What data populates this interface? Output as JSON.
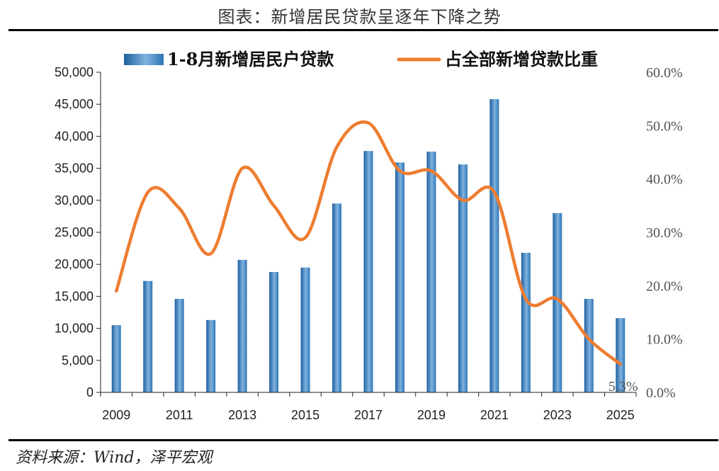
{
  "header": {
    "title": "图表：新增居民贷款呈逐年下降之势"
  },
  "footer": {
    "source": "资料来源：Wind，泽平宏观"
  },
  "chart_data": {
    "type": "bar",
    "categories": [
      "2009",
      "2010",
      "2011",
      "2012",
      "2013",
      "2014",
      "2015",
      "2016",
      "2017",
      "2018",
      "2019",
      "2020",
      "2021",
      "2022",
      "2023",
      "2024",
      "2025"
    ],
    "x_tick_labels": [
      "2009",
      "2011",
      "2013",
      "2015",
      "2017",
      "2019",
      "2021",
      "2023",
      "2025"
    ],
    "series": [
      {
        "name": "1-8月新增居民户贷款",
        "type": "bar",
        "axis": "left",
        "values": [
          10500,
          17400,
          14600,
          11300,
          20700,
          18800,
          19500,
          29500,
          37700,
          35900,
          37600,
          35600,
          45800,
          21800,
          28000,
          14600,
          11600
        ],
        "color": "#2E75B6"
      },
      {
        "name": "占全部新增贷款比重",
        "type": "line",
        "axis": "right",
        "values": [
          19.0,
          37.5,
          34.5,
          26.0,
          42.0,
          35.0,
          29.0,
          46.0,
          50.5,
          41.5,
          41.5,
          36.0,
          37.5,
          17.5,
          17.5,
          10.0,
          5.3
        ],
        "color": "#ED7D31"
      }
    ],
    "y_left": {
      "min": 0,
      "max": 50000,
      "ticks": [
        "0",
        "5,000",
        "10,000",
        "15,000",
        "20,000",
        "25,000",
        "30,000",
        "35,000",
        "40,000",
        "45,000",
        "50,000"
      ]
    },
    "y_right": {
      "min": 0,
      "max": 60,
      "ticks": [
        "0.0%",
        "10.0%",
        "20.0%",
        "30.0%",
        "40.0%",
        "50.0%",
        "60.0%"
      ]
    },
    "annotations": [
      {
        "text": "5.3%",
        "category": "2025"
      }
    ],
    "legend": "top",
    "grid": false
  }
}
